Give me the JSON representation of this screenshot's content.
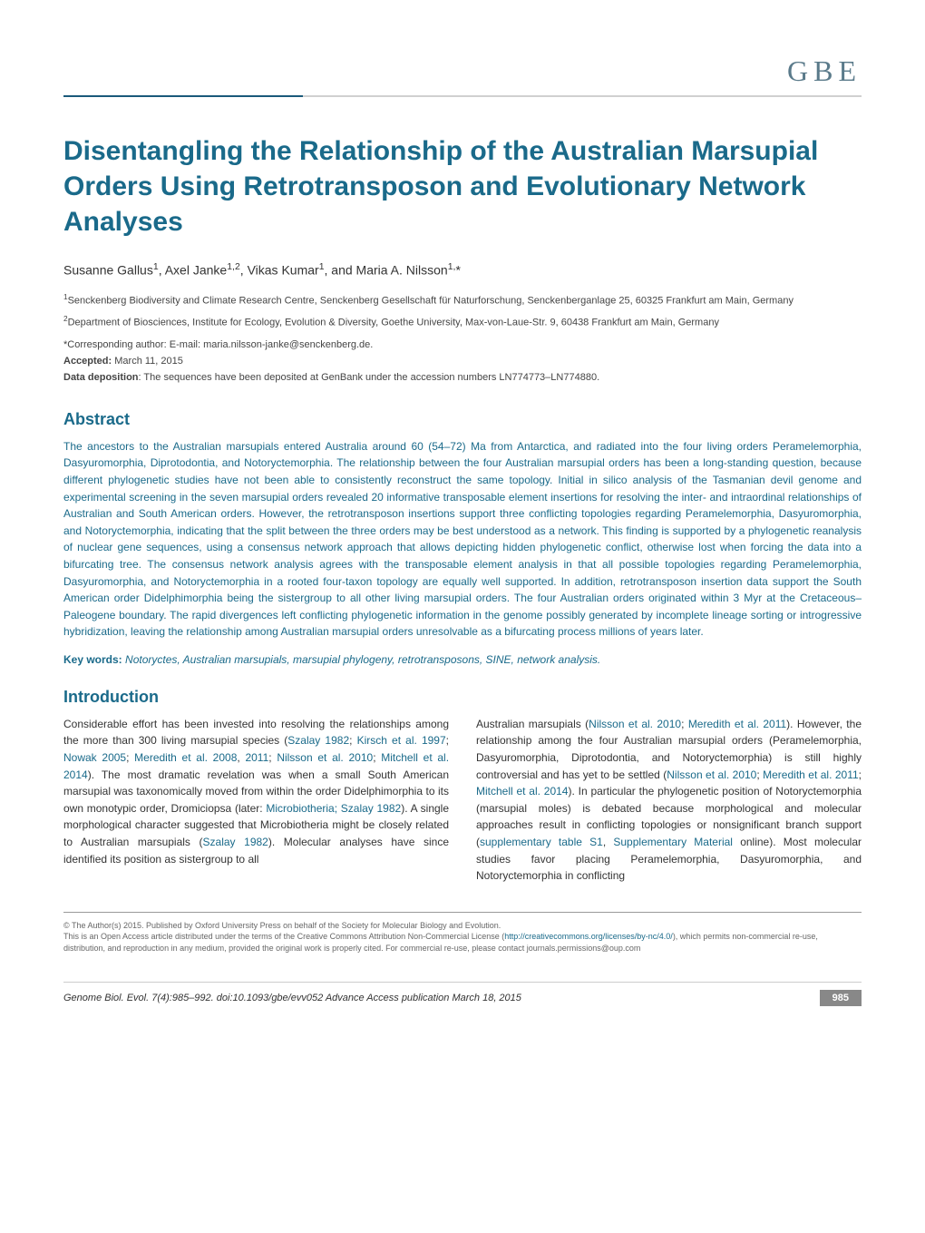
{
  "journal_abbrev": "GBE",
  "title": "Disentangling the Relationship of the Australian Marsupial Orders Using Retrotransposon and Evolutionary Network Analyses",
  "authors_html": "Susanne Gallus<sup>1</sup>, Axel Janke<sup>1,2</sup>, Vikas Kumar<sup>1</sup>, and Maria A. Nilsson<sup>1,</sup>*",
  "affiliations": [
    "<sup>1</sup>Senckenberg Biodiversity and Climate Research Centre, Senckenberg Gesellschaft für Naturforschung, Senckenberganlage 25, 60325 Frankfurt am Main, Germany",
    "<sup>2</sup>Department of Biosciences, Institute for Ecology, Evolution & Diversity, Goethe University, Max-von-Laue-Str. 9, 60438 Frankfurt am Main, Germany"
  ],
  "corresponding": "*Corresponding author: E-mail: maria.nilsson-janke@senckenberg.de.",
  "accepted_label": "Accepted:",
  "accepted_value": "March 11, 2015",
  "data_dep_label": "Data deposition",
  "data_dep_value": ": The sequences have been deposited at GenBank under the accession numbers LN774773–LN774880.",
  "abstract_heading": "Abstract",
  "abstract_text": "The ancestors to the Australian marsupials entered Australia around 60 (54–72) Ma from Antarctica, and radiated into the four living orders Peramelemorphia, Dasyuromorphia, Diprotodontia, and Notoryctemorphia. The relationship between the four Australian marsupial orders has been a long-standing question, because different phylogenetic studies have not been able to consistently reconstruct the same topology. Initial in silico analysis of the Tasmanian devil genome and experimental screening in the seven marsupial orders revealed 20 informative transposable element insertions for resolving the inter- and intraordinal relationships of Australian and South American orders. However, the retrotransposon insertions support three conflicting topologies regarding Peramelemorphia, Dasyuromorphia, and Notoryctemorphia, indicating that the split between the three orders may be best understood as a network. This finding is supported by a phylogenetic reanalysis of nuclear gene sequences, using a consensus network approach that allows depicting hidden phylogenetic conflict, otherwise lost when forcing the data into a bifurcating tree. The consensus network analysis agrees with the transposable element analysis in that all possible topologies regarding Peramelemorphia, Dasyuromorphia, and Notoryctemorphia in a rooted four-taxon topology are equally well supported. In addition, retrotransposon insertion data support the South American order Didelphimorphia being the sistergroup to all other living marsupial orders. The four Australian orders originated within 3 Myr at the Cretaceous–Paleogene boundary. The rapid divergences left conflicting phylogenetic information in the genome possibly generated by incomplete lineage sorting or introgressive hybridization, leaving the relationship among Australian marsupial orders unresolvable as a bifurcating process millions of years later.",
  "keywords_label": "Key words:",
  "keywords_text": " Notoryctes, Australian marsupials, marsupial phylogeny, retrotransposons, SINE, network analysis.",
  "intro_heading": "Introduction",
  "intro_col1": "Considerable effort has been invested into resolving the relationships among the more than 300 living marsupial species (<span class=\"ref\">Szalay 1982</span>; <span class=\"ref\">Kirsch et al. 1997</span>; <span class=\"ref\">Nowak 2005</span>; <span class=\"ref\">Meredith et al. 2008</span>, <span class=\"ref\">2011</span>; <span class=\"ref\">Nilsson et al. 2010</span>; <span class=\"ref\">Mitchell et al. 2014</span>). The most dramatic revelation was when a small South American marsupial was taxonomically moved from within the order Didelphimorphia to its own monotypic order, Dromiciopsa (later: <span class=\"ref\">Microbiotheria; Szalay 1982</span>). A single morphological character suggested that Microbiotheria might be closely related to Australian marsupials (<span class=\"ref\">Szalay 1982</span>). Molecular analyses have since identified its position as sistergroup to all",
  "intro_col2": "Australian marsupials (<span class=\"ref\">Nilsson et al. 2010</span>; <span class=\"ref\">Meredith et al. 2011</span>). However, the relationship among the four Australian marsupial orders (Peramelemorphia, Dasyuromorphia, Diprotodontia, and Notoryctemorphia) is still highly controversial and has yet to be settled (<span class=\"ref\">Nilsson et al. 2010</span>; <span class=\"ref\">Meredith et al. 2011</span>; <span class=\"ref\">Mitchell et al. 2014</span>). In particular the phylogenetic position of Notoryctemorphia (marsupial moles) is debated because morphological and molecular approaches result in conflicting topologies or nonsignificant branch support (<span class=\"ref\">supplementary table S1</span>, <span class=\"ref\">Supplementary Material</span> online). Most molecular studies favor placing Peramelemorphia, Dasyuromorphia, and Notoryctemorphia in conflicting",
  "license_line1": "© The Author(s) 2015. Published by Oxford University Press on behalf of the Society for Molecular Biology and Evolution.",
  "license_line2_pre": "This is an Open Access article distributed under the terms of the Creative Commons Attribution Non-Commercial License (",
  "license_url": "http://creativecommons.org/licenses/by-nc/4.0/",
  "license_line2_post": "), which permits non-commercial re-use, distribution, and reproduction in any medium, provided the original work is properly cited. For commercial re-use, please contact journals.permissions@oup.com",
  "footer_citation": "Genome Biol. Evol. 7(4):985–992.   doi:10.1093/gbe/evv052   Advance Access publication March 18, 2015",
  "page_number": "985",
  "colors": {
    "heading_color": "#1a6a8a",
    "abstract_color": "#1a6a8a",
    "journal_header_color": "#5a7a8a",
    "divider_primary": "#1a5a7a",
    "divider_secondary": "#d0d0d0",
    "body_text": "#333",
    "license_text": "#666",
    "pagenum_bg": "#888"
  }
}
